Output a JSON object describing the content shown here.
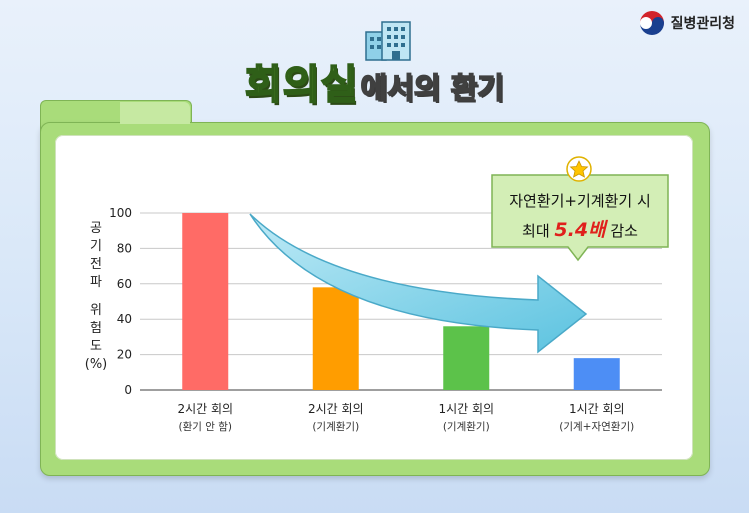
{
  "brand": {
    "name": "질병관리청"
  },
  "title": {
    "main": "회의실",
    "sub": "에서의 환기"
  },
  "callout": {
    "line1": "자연환기+기계환기 시",
    "line2_prefix": "최대 ",
    "line2_highlight": "5.4배",
    "line2_suffix": " 감소"
  },
  "chart_data": {
    "type": "bar",
    "ylabel_chars": [
      "공",
      "기",
      "전",
      "파",
      "",
      "위",
      "험",
      "도",
      "(%)"
    ],
    "ylim": [
      0,
      100
    ],
    "yticks": [
      0,
      20,
      40,
      60,
      80,
      100
    ],
    "grid": true,
    "categories": [
      {
        "label": "2시간 회의",
        "sub": "(환기 안 함)"
      },
      {
        "label": "2시간 회의",
        "sub": "(기계환기)"
      },
      {
        "label": "1시간 회의",
        "sub": "(기계환기)"
      },
      {
        "label": "1시간 회의",
        "sub": "(기계+자연환기)"
      }
    ],
    "values": [
      100,
      58,
      36,
      18
    ],
    "colors": [
      "#ff6b66",
      "#ff9d00",
      "#5cc24a",
      "#4d8ef5"
    ]
  }
}
